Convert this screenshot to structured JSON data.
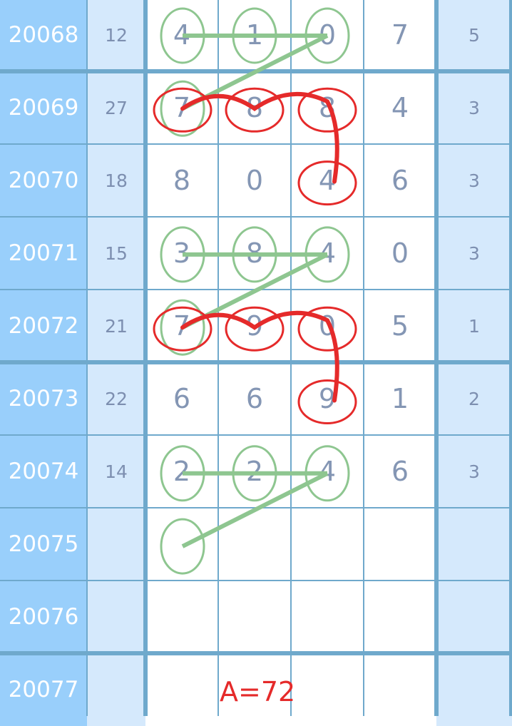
{
  "rows": [
    {
      "issue": "20068",
      "sum": "12",
      "digits": [
        "4",
        "1",
        "0",
        "7"
      ],
      "last": "5"
    },
    {
      "issue": "20069",
      "sum": "27",
      "digits": [
        "7",
        "8",
        "8",
        "4"
      ],
      "last": "3"
    },
    {
      "issue": "20070",
      "sum": "18",
      "digits": [
        "8",
        "0",
        "4",
        "6"
      ],
      "last": "3"
    },
    {
      "issue": "20071",
      "sum": "15",
      "digits": [
        "3",
        "8",
        "4",
        "0"
      ],
      "last": "3"
    },
    {
      "issue": "20072",
      "sum": "21",
      "digits": [
        "7",
        "9",
        "0",
        "5"
      ],
      "last": "1"
    },
    {
      "issue": "20073",
      "sum": "22",
      "digits": [
        "6",
        "6",
        "9",
        "1"
      ],
      "last": "2"
    },
    {
      "issue": "20074",
      "sum": "14",
      "digits": [
        "2",
        "2",
        "4",
        "6"
      ],
      "last": "3"
    },
    {
      "issue": "20075",
      "sum": "",
      "digits": [
        "",
        "",
        "",
        ""
      ],
      "last": ""
    },
    {
      "issue": "20076",
      "sum": "",
      "digits": [
        "",
        "",
        "",
        ""
      ],
      "last": ""
    },
    {
      "issue": "20077",
      "sum": "",
      "digits": [
        "",
        "",
        "",
        ""
      ],
      "last": ""
    }
  ],
  "annotation": "A=72",
  "colors": {
    "issue_bg": "#99cffb",
    "side_bg": "#d5e9fc",
    "grid": "#6fa9cc",
    "green_mark": "#8ec690",
    "red_mark": "#e52a2a"
  }
}
